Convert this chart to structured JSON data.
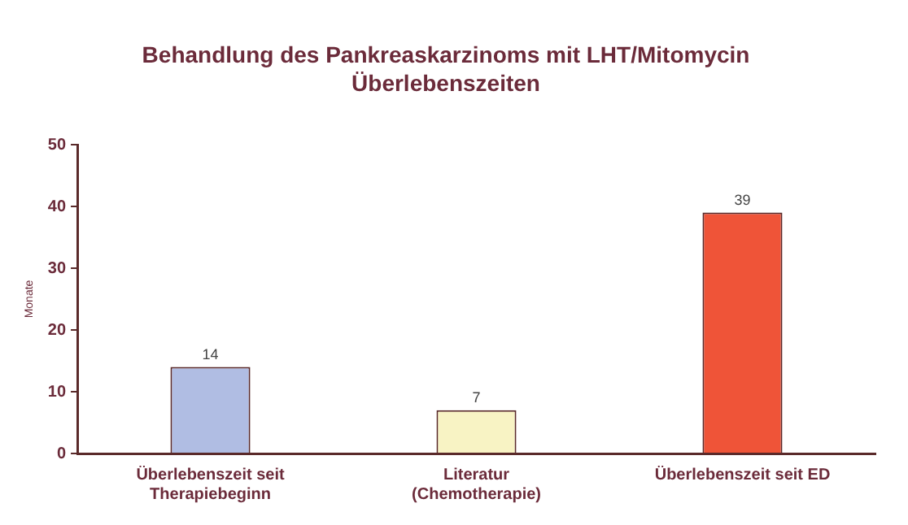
{
  "chart_data": {
    "type": "bar",
    "title": "Behandlung des Pankreaskarzinoms mit LHT/Mitomycin",
    "subtitle": "Überlebenszeiten",
    "ylabel": "Monate",
    "categories": [
      "Überlebenszeit seit Therapiebeginn",
      "Literatur (Chemotherapie)",
      "Überlebenszeit seit ED"
    ],
    "values": [
      14,
      7,
      39
    ],
    "colors": [
      "#b0bde3",
      "#f8f3c4",
      "#ef5438"
    ],
    "ylim": [
      0,
      50
    ],
    "yticks": [
      0,
      10,
      20,
      30,
      40,
      50
    ],
    "grid": false,
    "legend": false,
    "data_labels": true
  }
}
